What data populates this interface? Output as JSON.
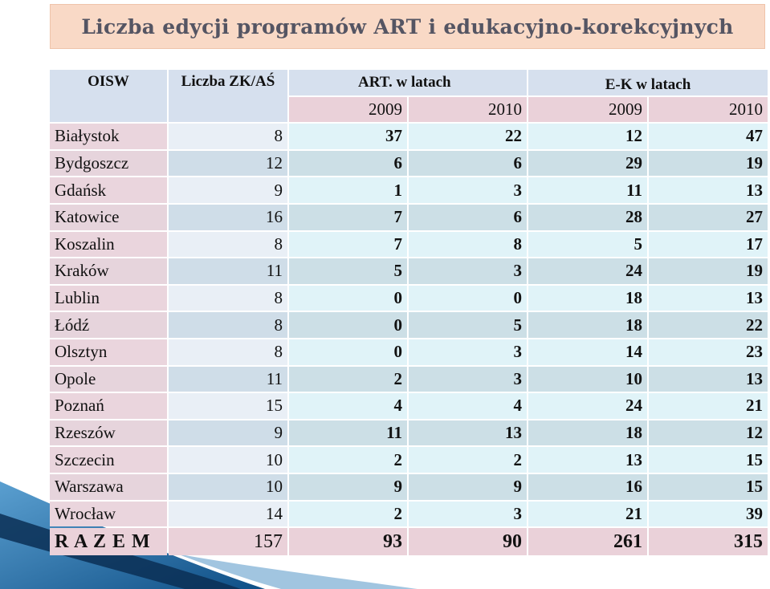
{
  "title": "Liczba edycji programów ART i edukacyjno-korekcyjnych",
  "chart_data": {
    "type": "table",
    "title": "Liczba edycji programów ART i edukacyjno-korekcyjnych",
    "headers": {
      "oisw": "OISW",
      "zk": "Liczba ZK/AŚ",
      "art": "ART. w latach",
      "ek": "E-K w latach",
      "years": [
        "2009",
        "2010",
        "2009",
        "2010"
      ]
    },
    "rows": [
      {
        "name": "Białystok",
        "zk": "8",
        "art2009": "37",
        "art2010": "22",
        "ek2009": "12",
        "ek2010": "47"
      },
      {
        "name": "Bydgoszcz",
        "zk": "12",
        "art2009": "6",
        "art2010": "6",
        "ek2009": "29",
        "ek2010": "19"
      },
      {
        "name": "Gdańsk",
        "zk": "9",
        "art2009": "1",
        "art2010": "3",
        "ek2009": "11",
        "ek2010": "13"
      },
      {
        "name": "Katowice",
        "zk": "16",
        "art2009": "7",
        "art2010": "6",
        "ek2009": "28",
        "ek2010": "27"
      },
      {
        "name": "Koszalin",
        "zk": "8",
        "art2009": "7",
        "art2010": "8",
        "ek2009": "5",
        "ek2010": "17"
      },
      {
        "name": "Kraków",
        "zk": "11",
        "art2009": "5",
        "art2010": "3",
        "ek2009": "24",
        "ek2010": "19"
      },
      {
        "name": "Lublin",
        "zk": "8",
        "art2009": "0",
        "art2010": "0",
        "ek2009": "18",
        "ek2010": "13"
      },
      {
        "name": "Łódź",
        "zk": "8",
        "art2009": "0",
        "art2010": "5",
        "ek2009": "18",
        "ek2010": "22"
      },
      {
        "name": "Olsztyn",
        "zk": "8",
        "art2009": "0",
        "art2010": "3",
        "ek2009": "14",
        "ek2010": "23"
      },
      {
        "name": "Opole",
        "zk": "11",
        "art2009": "2",
        "art2010": "3",
        "ek2009": "10",
        "ek2010": "13"
      },
      {
        "name": "Poznań",
        "zk": "15",
        "art2009": "4",
        "art2010": "4",
        "ek2009": "24",
        "ek2010": "21"
      },
      {
        "name": "Rzeszów",
        "zk": "9",
        "art2009": "11",
        "art2010": "13",
        "ek2009": "18",
        "ek2010": "12"
      },
      {
        "name": "Szczecin",
        "zk": "10",
        "art2009": "2",
        "art2010": "2",
        "ek2009": "13",
        "ek2010": "15"
      },
      {
        "name": "Warszawa",
        "zk": "10",
        "art2009": "9",
        "art2010": "9",
        "ek2009": "16",
        "ek2010": "15"
      },
      {
        "name": "Wrocław",
        "zk": "14",
        "art2009": "2",
        "art2010": "3",
        "ek2009": "21",
        "ek2010": "39"
      }
    ],
    "total": {
      "name": "R A Z E M",
      "zk": "157",
      "art2009": "93",
      "art2010": "90",
      "ek2009": "261",
      "ek2010": "315"
    }
  },
  "colors": {
    "title_bg": "#f9d9c6",
    "header_bg": "#d6e0ee",
    "year_bg": "#ead1d9",
    "cell_light": "#e0f3f8",
    "cell_dark": "#ccdfe6",
    "deco_blue": "#1f6fa5"
  }
}
